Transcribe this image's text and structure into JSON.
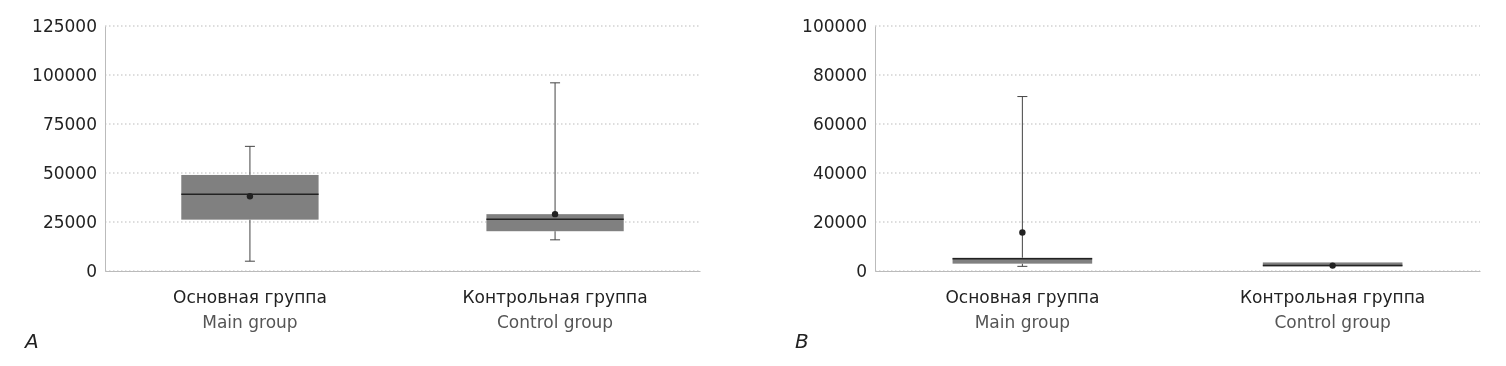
{
  "chart_data": [
    {
      "type": "box",
      "categories": [
        "Основная группа\nMain group",
        "Контрольная группа\nControl group"
      ],
      "color": "#808080",
      "boxes": [
        {
          "low": 5000,
          "q1": 26200,
          "median": 39100,
          "q3": 49000,
          "high": 63600,
          "mean": 38100
        },
        {
          "low": 15900,
          "q1": 20300,
          "median": 26400,
          "q3": 29000,
          "high": 96000,
          "mean": 29000
        }
      ],
      "ylim": [
        0,
        125000
      ],
      "yticks": [
        0,
        25000,
        50000,
        75000,
        100000,
        125000
      ],
      "grid": "y",
      "annotations": [
        "A"
      ]
    },
    {
      "type": "box",
      "categories": [
        "Основная группа\nMain group",
        "Контрольная группа\nControl group"
      ],
      "color": "#808080",
      "boxes": [
        {
          "low": 1900,
          "q1": 3000,
          "median": 5000,
          "q3": 5400,
          "high": 71200,
          "mean": 15700
        },
        {
          "low": 1900,
          "q1": 1900,
          "median": 2200,
          "q3": 3500,
          "high": 3500,
          "mean": 2200
        }
      ],
      "ylim": [
        0,
        100000
      ],
      "yticks": [
        0,
        20000,
        40000,
        60000,
        80000,
        100000
      ],
      "grid": "y",
      "annotations": [
        "B"
      ]
    }
  ]
}
